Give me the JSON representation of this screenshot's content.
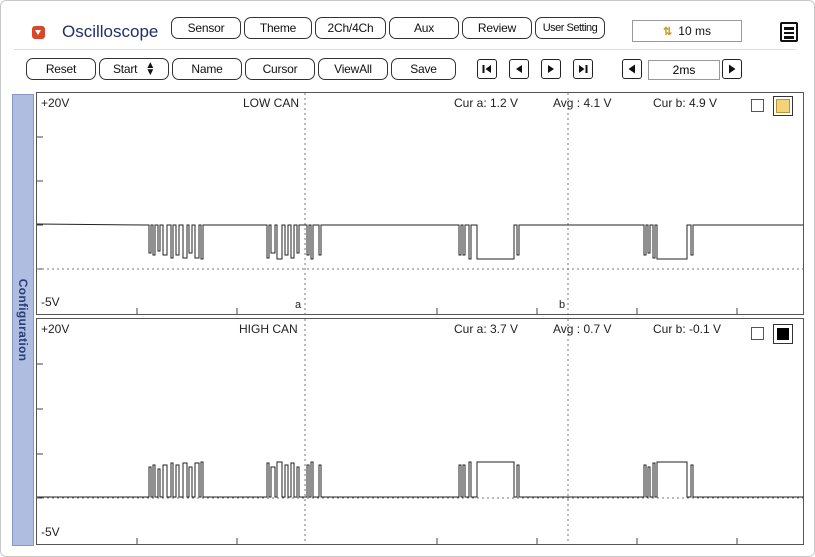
{
  "app": {
    "title": "Oscilloscope",
    "time_division": "10 ms"
  },
  "toolbar_top": [
    "Sensor",
    "Theme",
    "2Ch/4Ch",
    "Aux",
    "Review",
    "User Setting"
  ],
  "toolbar_bottom": {
    "reset": "Reset",
    "start": "Start",
    "name": "Name",
    "cursor": "Cursor",
    "view_all": "ViewAll",
    "save": "Save"
  },
  "navigation": {
    "time_base": "2ms"
  },
  "sidebar": {
    "label": "Configuration"
  },
  "channels": [
    {
      "name": "LOW CAN",
      "y_max_label": "+20V",
      "y_min_label": "-5V",
      "cur_a": "Cur a: 1.2 V",
      "avg": "Avg  : 4.1 V",
      "cur_b": "Cur b: 4.9 V",
      "cursor_a_label": "a",
      "cursor_b_label": "b",
      "swatch_color": "#f3d27a"
    },
    {
      "name": "HIGH CAN",
      "y_max_label": "+20V",
      "y_min_label": "-5V",
      "cur_a": "Cur a: 3.7 V",
      "avg": "Avg  : 0.7 V",
      "cur_b": "Cur b: -0.1 V",
      "swatch_color": "#000000"
    }
  ],
  "colors": {
    "accent_red": "#d9472b",
    "title_blue": "#1f2f6b",
    "sidebar_blue": "#aebde0"
  },
  "icons": {
    "collapse": "chevron-down-icon",
    "time": "time-scale-icon",
    "menu": "hamburger-menu-icon",
    "first": "skip-first-icon",
    "prev": "step-prev-icon",
    "next": "step-next-icon",
    "last": "skip-last-icon"
  }
}
